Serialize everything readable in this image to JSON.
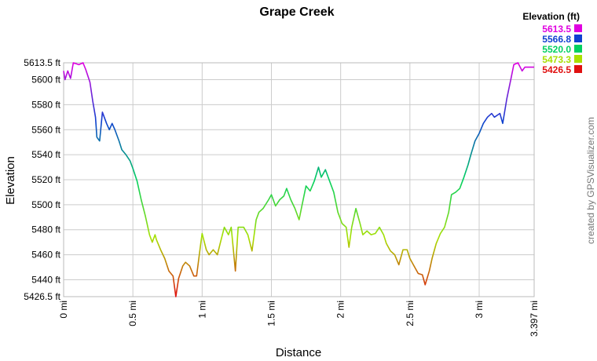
{
  "chart_data": {
    "type": "line",
    "title": "Grape Creek",
    "xlabel": "Distance",
    "ylabel": "Elevation",
    "credit": "created by GPSVisualizer.com",
    "legend_title": "Elevation (ft)",
    "color_scale": [
      {
        "value": 5613.5,
        "label": "5613.5",
        "color": "#e000e0"
      },
      {
        "value": 5566.8,
        "label": "5566.8",
        "color": "#1040d0"
      },
      {
        "value": 5520.0,
        "label": "5520.0",
        "color": "#00d060"
      },
      {
        "value": 5473.3,
        "label": "5473.3",
        "color": "#a8e000"
      },
      {
        "value": 5426.5,
        "label": "5426.5",
        "color": "#e01010"
      }
    ],
    "grid": true,
    "xlim": [
      0,
      3.397
    ],
    "ylim": [
      5426.5,
      5613.5
    ],
    "xticks": [
      {
        "value": 0,
        "label": "0 mi"
      },
      {
        "value": 0.5,
        "label": "0.5 mi"
      },
      {
        "value": 1,
        "label": "1 mi"
      },
      {
        "value": 1.5,
        "label": "1.5 mi"
      },
      {
        "value": 2,
        "label": "2 mi"
      },
      {
        "value": 2.5,
        "label": "2.5 mi"
      },
      {
        "value": 3,
        "label": "3 mi"
      },
      {
        "value": 3.397,
        "label": "3.397 mi"
      }
    ],
    "yticks": [
      {
        "value": 5426.5,
        "label": "5426.5 ft"
      },
      {
        "value": 5440,
        "label": "5440 ft"
      },
      {
        "value": 5460,
        "label": "5460 ft"
      },
      {
        "value": 5480,
        "label": "5480 ft"
      },
      {
        "value": 5500,
        "label": "5500 ft"
      },
      {
        "value": 5520,
        "label": "5520 ft"
      },
      {
        "value": 5540,
        "label": "5540 ft"
      },
      {
        "value": 5560,
        "label": "5560 ft"
      },
      {
        "value": 5580,
        "label": "5580 ft"
      },
      {
        "value": 5600,
        "label": "5600 ft"
      },
      {
        "value": 5613.5,
        "label": "5613.5 ft"
      }
    ],
    "x": [
      0,
      0.01,
      0.03,
      0.05,
      0.07,
      0.11,
      0.14,
      0.16,
      0.19,
      0.21,
      0.23,
      0.24,
      0.26,
      0.28,
      0.31,
      0.33,
      0.35,
      0.37,
      0.4,
      0.42,
      0.45,
      0.48,
      0.5,
      0.53,
      0.56,
      0.59,
      0.62,
      0.64,
      0.66,
      0.67,
      0.7,
      0.73,
      0.76,
      0.79,
      0.81,
      0.83,
      0.86,
      0.88,
      0.91,
      0.94,
      0.96,
      0.99,
      1.0,
      1.03,
      1.05,
      1.08,
      1.11,
      1.13,
      1.16,
      1.19,
      1.21,
      1.24,
      1.26,
      1.3,
      1.33,
      1.36,
      1.39,
      1.41,
      1.44,
      1.48,
      1.5,
      1.53,
      1.56,
      1.59,
      1.61,
      1.64,
      1.67,
      1.7,
      1.72,
      1.75,
      1.78,
      1.81,
      1.84,
      1.86,
      1.89,
      1.92,
      1.95,
      1.98,
      2.01,
      2.04,
      2.06,
      2.08,
      2.11,
      2.14,
      2.16,
      2.19,
      2.22,
      2.25,
      2.28,
      2.31,
      2.33,
      2.36,
      2.39,
      2.42,
      2.45,
      2.48,
      2.5,
      2.53,
      2.56,
      2.59,
      2.61,
      2.64,
      2.66,
      2.69,
      2.72,
      2.75,
      2.78,
      2.8,
      2.83,
      2.86,
      2.89,
      2.92,
      2.94,
      2.97,
      3.0,
      3.03,
      3.06,
      3.09,
      3.11,
      3.15,
      3.17,
      3.2,
      3.23,
      3.25,
      3.28,
      3.31,
      3.33,
      3.37,
      3.397
    ],
    "values": [
      5607,
      5600,
      5607,
      5601,
      5613.5,
      5612,
      5613.5,
      5608,
      5598,
      5583,
      5570,
      5554,
      5551,
      5574,
      5565,
      5560,
      5565,
      5560,
      5551,
      5544,
      5540,
      5535,
      5529,
      5519,
      5504,
      5491,
      5476,
      5470,
      5476,
      5472,
      5464,
      5457,
      5447,
      5443,
      5426.5,
      5441,
      5451,
      5454,
      5451,
      5443,
      5443,
      5469,
      5477,
      5464,
      5460,
      5464,
      5460,
      5469,
      5482,
      5476,
      5482,
      5447,
      5482,
      5482,
      5476,
      5463,
      5488,
      5494,
      5497,
      5504,
      5508,
      5499,
      5504,
      5507,
      5513,
      5504,
      5497,
      5488,
      5499,
      5515,
      5511,
      5519,
      5530,
      5522,
      5528,
      5519,
      5510,
      5494,
      5485,
      5482,
      5466,
      5482,
      5497,
      5485,
      5476,
      5479,
      5476,
      5477,
      5482,
      5476,
      5469,
      5463,
      5460,
      5452,
      5464,
      5464,
      5457,
      5451,
      5445,
      5444,
      5436,
      5447,
      5457,
      5469,
      5477,
      5482,
      5494,
      5508,
      5510,
      5513,
      5522,
      5532,
      5540,
      5551,
      5557,
      5565,
      5570,
      5573,
      5570,
      5573,
      5565,
      5585,
      5601,
      5612,
      5613.5,
      5607,
      5610,
      5610,
      5610
    ]
  }
}
